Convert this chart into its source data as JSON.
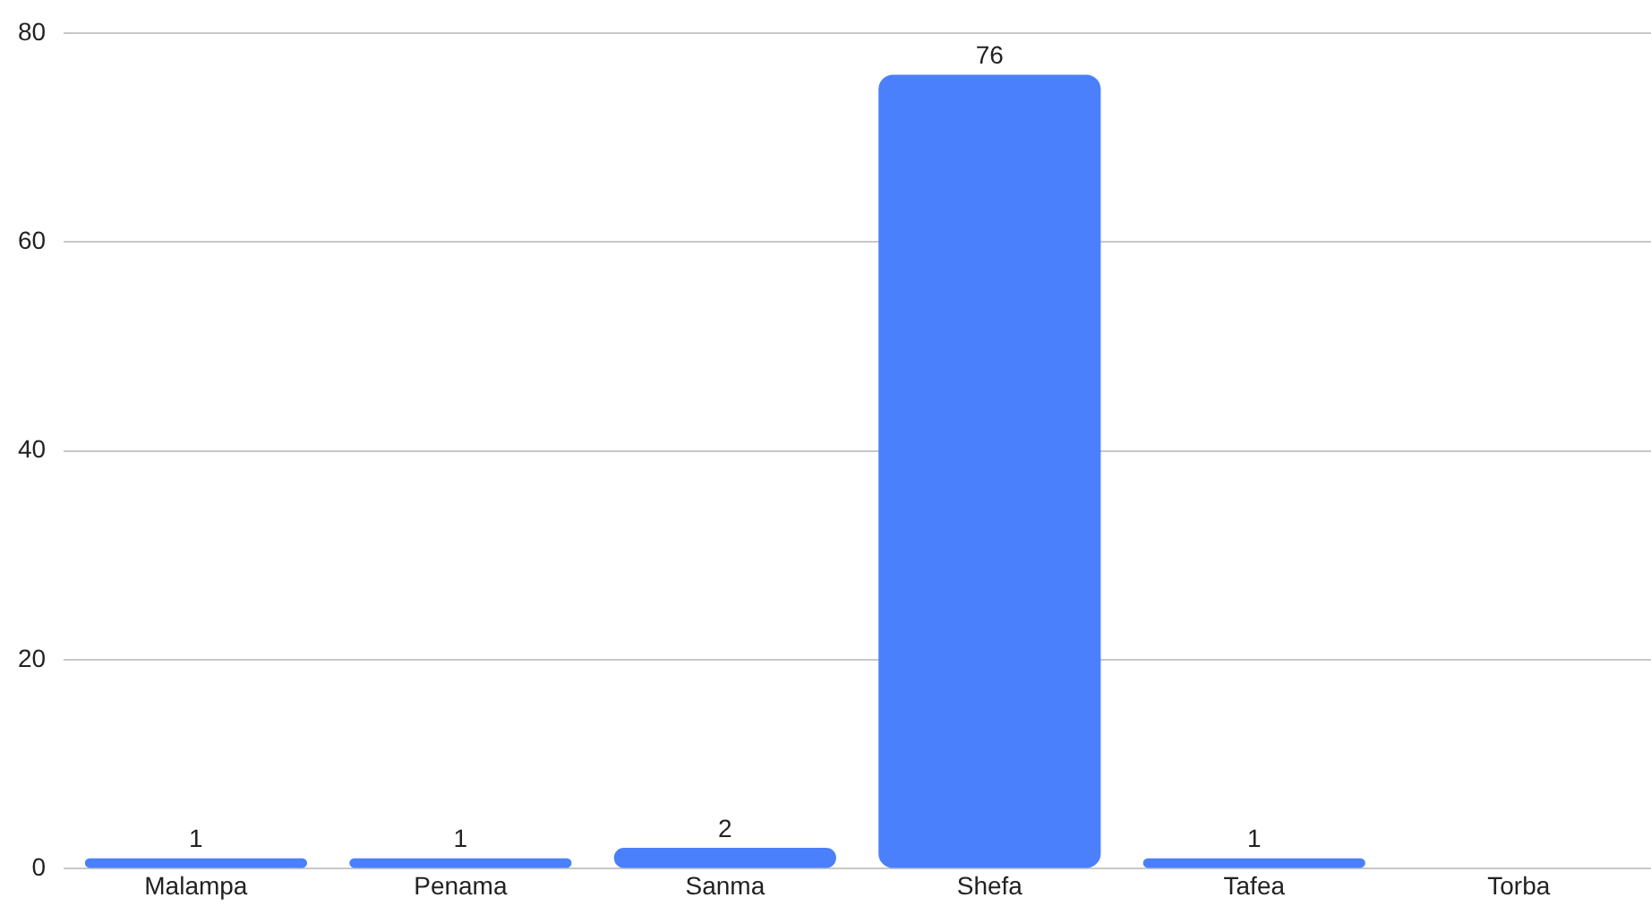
{
  "chart_data": {
    "type": "bar",
    "categories": [
      "Malampa",
      "Penama",
      "Sanma",
      "Shefa",
      "Tafea",
      "Torba"
    ],
    "values": [
      1,
      1,
      2,
      76,
      1,
      0
    ],
    "value_labels": [
      "1",
      "1",
      "2",
      "76",
      "1",
      null
    ],
    "color": "#4a80fb",
    "ylim": [
      0,
      80
    ],
    "yticks": [
      0,
      20,
      40,
      60,
      80
    ],
    "grid": "y",
    "legend": false
  }
}
